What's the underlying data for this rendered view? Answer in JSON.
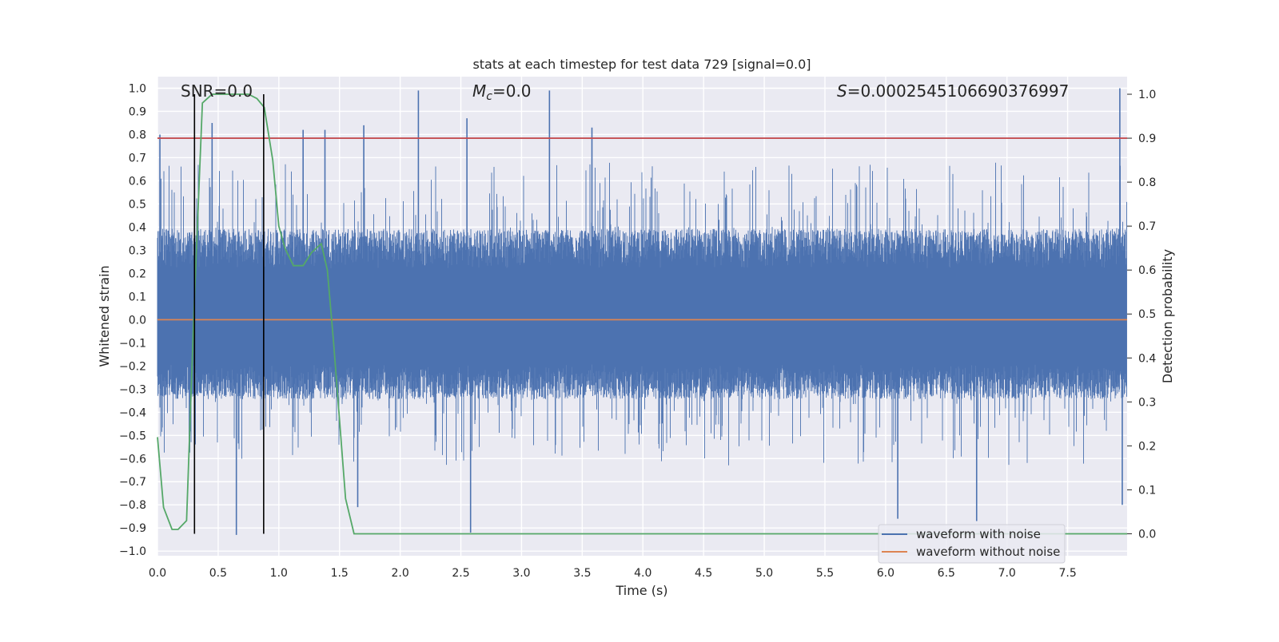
{
  "chart_data": {
    "type": "line",
    "title": "stats at each timestep for test data 729 [signal=0.0]",
    "xlabel": "Time (s)",
    "ylabel": "Whitened strain",
    "y2label": "Detection probability",
    "xlim": [
      0.0,
      7.99
    ],
    "ylim": [
      -1.02,
      1.05
    ],
    "y2lim": [
      -0.05,
      1.04
    ],
    "x_ticks": [
      "0.0",
      "0.5",
      "1.0",
      "1.5",
      "2.0",
      "2.5",
      "3.0",
      "3.5",
      "4.0",
      "4.5",
      "5.0",
      "5.5",
      "6.0",
      "6.5",
      "7.0",
      "7.5"
    ],
    "y_ticks": [
      "1.0",
      "0.9",
      "0.8",
      "0.7",
      "0.6",
      "0.5",
      "0.4",
      "0.3",
      "0.2",
      "0.1",
      "0.0",
      "−0.1",
      "−0.2",
      "−0.3",
      "−0.4",
      "−0.5",
      "−0.6",
      "−0.7",
      "−0.8",
      "−0.9",
      "−1.0"
    ],
    "y2_ticks": [
      "1.0",
      "0.9",
      "0.8",
      "0.7",
      "0.6",
      "0.5",
      "0.4",
      "0.3",
      "0.2",
      "0.1",
      "0.0"
    ],
    "grid": true,
    "legend_position": "bottom-right",
    "annotations": {
      "snr_label": "SNR=0.0",
      "mc_symbol": "M",
      "mc_subscript": "c",
      "mc_value": "=0.0",
      "s_symbol": "S",
      "s_value": "=0.0002545106690376997"
    },
    "series": [
      {
        "name": "waveform with noise",
        "color": "#4c72b0",
        "description_type": "noise",
        "typical_max": 0.4,
        "typical_min": -0.35,
        "peaks": [
          {
            "x": 0.02,
            "y": 0.8
          },
          {
            "x": 0.45,
            "y": 0.85
          },
          {
            "x": 0.65,
            "y": -0.93
          },
          {
            "x": 1.2,
            "y": 0.82
          },
          {
            "x": 1.38,
            "y": 0.82
          },
          {
            "x": 1.7,
            "y": 0.84
          },
          {
            "x": 1.65,
            "y": -0.81
          },
          {
            "x": 2.15,
            "y": 0.99
          },
          {
            "x": 2.55,
            "y": 0.87
          },
          {
            "x": 2.58,
            "y": -0.92
          },
          {
            "x": 3.23,
            "y": 0.99
          },
          {
            "x": 3.58,
            "y": 0.83
          },
          {
            "x": 6.1,
            "y": -0.86
          },
          {
            "x": 6.75,
            "y": -0.87
          },
          {
            "x": 7.93,
            "y": 1.0
          },
          {
            "x": 7.95,
            "y": -0.8
          }
        ]
      },
      {
        "name": "waveform without noise",
        "color": "#dd8452",
        "x": [
          0.0,
          7.99
        ],
        "y": [
          0.0,
          0.0
        ]
      },
      {
        "name": "detection probability",
        "color": "#55a868",
        "axis": "right",
        "x": [
          0.0,
          0.05,
          0.12,
          0.17,
          0.24,
          0.3,
          0.37,
          0.45,
          0.55,
          0.65,
          0.75,
          0.82,
          0.88,
          0.95,
          1.0,
          1.05,
          1.12,
          1.2,
          1.27,
          1.35,
          1.4,
          1.45,
          1.55,
          1.62,
          1.7,
          2.5,
          7.99
        ],
        "y": [
          0.22,
          0.06,
          0.01,
          0.01,
          0.03,
          0.5,
          0.98,
          1.0,
          1.0,
          1.0,
          1.0,
          0.99,
          0.97,
          0.85,
          0.7,
          0.65,
          0.61,
          0.61,
          0.64,
          0.66,
          0.6,
          0.44,
          0.08,
          0.0,
          0.0,
          0.0,
          0.0
        ]
      }
    ],
    "hlines": [
      {
        "name": "threshold",
        "axis": "right",
        "y": 0.9,
        "color": "#c44e52"
      }
    ],
    "vlines": [
      {
        "name": "window-start",
        "x": 0.305,
        "color": "#000000"
      },
      {
        "name": "window-end",
        "x": 0.875,
        "color": "#000000"
      }
    ],
    "legend": {
      "entries": [
        {
          "label": "waveform with noise",
          "color": "#4c72b0"
        },
        {
          "label": "waveform without noise",
          "color": "#dd8452"
        }
      ]
    }
  }
}
